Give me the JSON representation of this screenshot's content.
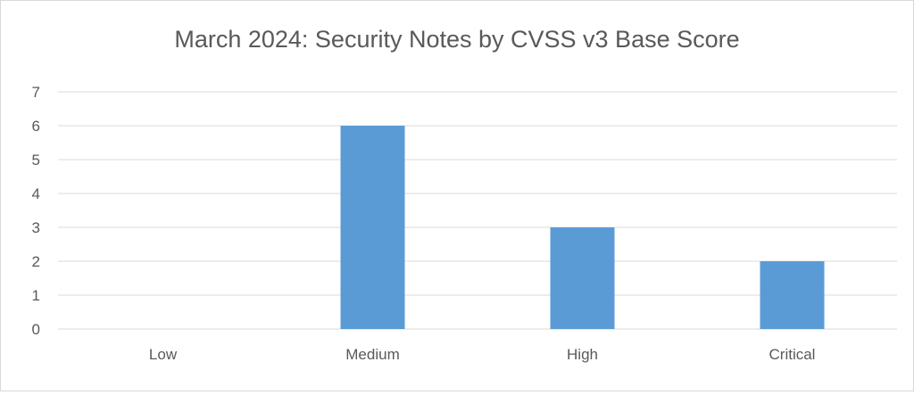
{
  "chart_data": {
    "type": "bar",
    "title": "March 2024: Security Notes by CVSS v3 Base Score",
    "xlabel": "",
    "ylabel": "",
    "categories": [
      "Low",
      "Medium",
      "High",
      "Critical"
    ],
    "values": [
      0,
      6,
      3,
      2
    ],
    "y_ticks": [
      "0",
      "1",
      "2",
      "3",
      "4",
      "5",
      "6",
      "7"
    ],
    "ylim": [
      0,
      7
    ],
    "grid": true,
    "legend": "none",
    "colors": {
      "bar": "#5b9bd5",
      "gridline": "#d9d9d9",
      "axis_text": "#595959",
      "title": "#595959"
    }
  }
}
